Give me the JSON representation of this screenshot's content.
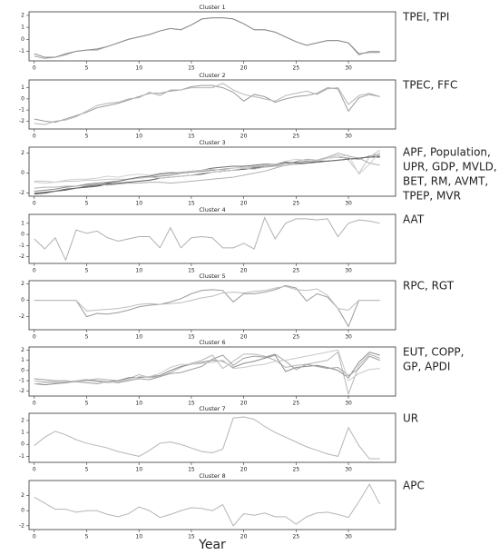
{
  "xlabel": "Year",
  "chart_data": [
    {
      "type": "line",
      "title": "Cluster 1",
      "annotation": [
        "TPEI, TPI"
      ],
      "x": [
        0,
        1,
        2,
        3,
        4,
        5,
        6,
        7,
        8,
        9,
        10,
        11,
        12,
        13,
        14,
        15,
        16,
        17,
        18,
        19,
        20,
        21,
        22,
        23,
        24,
        25,
        26,
        27,
        28,
        29,
        30,
        31,
        32,
        33
      ],
      "xlim": [
        -0.5,
        34.5
      ],
      "xticks": [
        0,
        5,
        10,
        15,
        20,
        25,
        30
      ],
      "ylim": [
        -1.8,
        2.3
      ],
      "yticks": [
        -1,
        0,
        1,
        2
      ],
      "series": [
        {
          "color": "#a6a6a6",
          "values": [
            -1.4,
            -1.6,
            -1.5,
            -1.3,
            -1.0,
            -0.9,
            -0.9,
            -0.6,
            -0.3,
            0.0,
            0.2,
            0.4,
            0.7,
            0.9,
            0.8,
            1.2,
            1.7,
            1.8,
            1.8,
            1.7,
            1.3,
            0.8,
            0.8,
            0.6,
            0.2,
            -0.2,
            -0.5,
            -0.3,
            -0.1,
            -0.1,
            -0.3,
            -1.3,
            -1.0,
            -1.0
          ]
        },
        {
          "color": "#8c8c8c",
          "values": [
            -1.2,
            -1.5,
            -1.5,
            -1.2,
            -1.0,
            -0.9,
            -0.8,
            -0.6,
            -0.3,
            0.0,
            0.2,
            0.4,
            0.7,
            0.9,
            0.8,
            1.2,
            1.7,
            1.8,
            1.8,
            1.7,
            1.3,
            0.8,
            0.8,
            0.6,
            0.2,
            -0.2,
            -0.5,
            -0.3,
            -0.1,
            -0.1,
            -0.3,
            -1.2,
            -1.1,
            -1.1
          ]
        }
      ]
    },
    {
      "type": "line",
      "title": "Cluster 2",
      "annotation": [
        "TPEC, FFC"
      ],
      "x": [
        0,
        1,
        2,
        3,
        4,
        5,
        6,
        7,
        8,
        9,
        10,
        11,
        12,
        13,
        14,
        15,
        16,
        17,
        18,
        19,
        20,
        21,
        22,
        23,
        24,
        25,
        26,
        27,
        28,
        29,
        30,
        31,
        32,
        33
      ],
      "xlim": [
        -0.5,
        34.5
      ],
      "xticks": [
        0,
        5,
        10,
        15,
        20,
        25,
        30
      ],
      "ylim": [
        -2.7,
        1.7
      ],
      "yticks": [
        -2,
        -1,
        0,
        1
      ],
      "series": [
        {
          "color": "#9a9a9a",
          "values": [
            -1.8,
            -2.0,
            -2.1,
            -1.8,
            -1.5,
            -1.2,
            -0.8,
            -0.6,
            -0.4,
            -0.1,
            0.2,
            0.5,
            0.5,
            0.7,
            0.8,
            1.1,
            1.2,
            1.2,
            1.0,
            0.6,
            -0.2,
            0.4,
            0.2,
            -0.3,
            0.0,
            0.2,
            0.3,
            0.5,
            1.0,
            0.9,
            -1.1,
            0.1,
            0.4,
            0.2
          ]
        },
        {
          "color": "#b5b5b5",
          "values": [
            -2.2,
            -2.3,
            -2.0,
            -1.9,
            -1.6,
            -1.1,
            -0.6,
            -0.4,
            -0.3,
            0.0,
            0.1,
            0.6,
            0.3,
            0.8,
            0.8,
            1.0,
            1.0,
            1.0,
            1.4,
            0.8,
            0.4,
            0.2,
            0.0,
            -0.2,
            0.3,
            0.5,
            0.7,
            0.4,
            0.9,
            1.0,
            -0.5,
            0.3,
            0.5,
            0.2
          ]
        }
      ]
    },
    {
      "type": "line",
      "title": "Cluster 3",
      "annotation": [
        "APF, Population,",
        "UPR, GDP, MVLD,",
        "BET, RM, AVMT,",
        "TPEP, MVR"
      ],
      "x": [
        0,
        1,
        2,
        3,
        4,
        5,
        6,
        7,
        8,
        9,
        10,
        11,
        12,
        13,
        14,
        15,
        16,
        17,
        18,
        19,
        20,
        21,
        22,
        23,
        24,
        25,
        26,
        27,
        28,
        29,
        30,
        31,
        32,
        33
      ],
      "xlim": [
        -0.5,
        34.5
      ],
      "xticks": [
        0,
        5,
        10,
        15,
        20,
        25,
        30
      ],
      "ylim": [
        -2.3,
        2.6
      ],
      "yticks": [
        -2,
        0,
        2
      ],
      "series": [
        {
          "color": "#555555",
          "values": [
            -2.0,
            -1.9,
            -1.8,
            -1.6,
            -1.5,
            -1.4,
            -1.3,
            -1.1,
            -1.0,
            -0.9,
            -0.8,
            -0.7,
            -0.5,
            -0.4,
            -0.3,
            -0.2,
            -0.1,
            0.1,
            0.2,
            0.3,
            0.4,
            0.5,
            0.6,
            0.7,
            0.8,
            0.9,
            1.0,
            1.1,
            1.2,
            1.3,
            1.4,
            1.5,
            1.6,
            1.7
          ]
        },
        {
          "color": "#8a8a8a",
          "values": [
            -1.8,
            -1.7,
            -1.6,
            -1.4,
            -1.3,
            -1.1,
            -1.0,
            -0.9,
            -0.8,
            -0.6,
            -0.5,
            -0.4,
            -0.3,
            -0.2,
            0.0,
            0.1,
            0.2,
            0.3,
            0.4,
            0.5,
            0.6,
            0.6,
            0.7,
            0.8,
            1.0,
            1.1,
            1.2,
            1.3,
            1.5,
            1.6,
            1.5,
            1.4,
            1.7,
            1.9
          ]
        },
        {
          "color": "#c4c4c4",
          "values": [
            -0.8,
            -0.8,
            -0.9,
            -0.8,
            -0.8,
            -0.7,
            -0.7,
            -0.6,
            -0.6,
            -0.6,
            -0.5,
            -0.4,
            -0.5,
            -0.4,
            -0.3,
            -0.2,
            0.0,
            0.1,
            0.2,
            0.3,
            0.5,
            0.4,
            0.6,
            0.7,
            0.8,
            0.9,
            1.1,
            1.3,
            1.5,
            1.8,
            1.3,
            0.0,
            1.6,
            2.3
          ]
        },
        {
          "color": "#b0b0b0",
          "values": [
            -1.5,
            -1.4,
            -1.4,
            -1.3,
            -1.3,
            -1.2,
            -1.1,
            -1.2,
            -1.1,
            -1.0,
            -1.0,
            -0.9,
            -0.9,
            -1.0,
            -0.9,
            -0.8,
            -0.7,
            -0.6,
            -0.5,
            -0.4,
            -0.2,
            0.0,
            0.2,
            0.5,
            0.8,
            1.2,
            1.4,
            1.3,
            1.6,
            2.0,
            1.7,
            1.5,
            1.0,
            0.8
          ]
        },
        {
          "color": "#6e6e6e",
          "values": [
            -2.1,
            -2.0,
            -1.8,
            -1.7,
            -1.5,
            -1.3,
            -1.2,
            -1.0,
            -0.8,
            -0.6,
            -0.4,
            -0.3,
            -0.1,
            0.0,
            0.1,
            0.2,
            0.3,
            0.5,
            0.6,
            0.7,
            0.7,
            0.8,
            0.9,
            0.9,
            1.1,
            1.0,
            1.0,
            1.2,
            1.2,
            1.3,
            1.4,
            1.5,
            1.6,
            1.6
          ]
        },
        {
          "color": "#d0d0d0",
          "values": [
            -0.9,
            -1.0,
            -0.9,
            -0.7,
            -0.6,
            -0.6,
            -0.5,
            -0.3,
            -0.4,
            -0.2,
            -0.1,
            -0.2,
            0.0,
            0.1,
            0.1,
            0.2,
            0.3,
            0.4,
            0.3,
            0.5,
            0.6,
            0.7,
            0.8,
            0.9,
            1.2,
            1.4,
            1.3,
            1.2,
            1.5,
            1.6,
            1.8,
            -0.1,
            0.9,
            2.1
          ]
        }
      ]
    },
    {
      "type": "line",
      "title": "Cluster 4",
      "annotation": [
        "AAT"
      ],
      "x": [
        0,
        1,
        2,
        3,
        4,
        5,
        6,
        7,
        8,
        9,
        10,
        11,
        12,
        13,
        14,
        15,
        16,
        17,
        18,
        19,
        20,
        21,
        22,
        23,
        24,
        25,
        26,
        27,
        28,
        29,
        30,
        31,
        32,
        33
      ],
      "xlim": [
        -0.5,
        34.5
      ],
      "xticks": [
        0,
        5,
        10,
        15,
        20,
        25,
        30
      ],
      "ylim": [
        -2.6,
        1.8
      ],
      "yticks": [
        -2,
        -1,
        0,
        1
      ],
      "series": [
        {
          "color": "#b0b0b0",
          "values": [
            -0.4,
            -1.3,
            -0.3,
            -2.3,
            0.4,
            0.1,
            0.3,
            -0.3,
            -0.6,
            -0.4,
            -0.2,
            -0.2,
            -1.2,
            0.6,
            -1.2,
            -0.3,
            -0.2,
            -0.3,
            -1.2,
            -1.2,
            -0.8,
            -1.3,
            1.5,
            -0.4,
            1.0,
            1.4,
            1.4,
            1.3,
            1.4,
            -0.2,
            1.0,
            1.3,
            1.2,
            1.0
          ]
        }
      ]
    },
    {
      "type": "line",
      "title": "Cluster 5",
      "annotation": [
        "RPC, RGT"
      ],
      "x": [
        0,
        1,
        2,
        3,
        4,
        5,
        6,
        7,
        8,
        9,
        10,
        11,
        12,
        13,
        14,
        15,
        16,
        17,
        18,
        19,
        20,
        21,
        22,
        23,
        24,
        25,
        26,
        27,
        28,
        29,
        30,
        31,
        32,
        33
      ],
      "xlim": [
        -0.5,
        34.5
      ],
      "xticks": [
        0,
        5,
        10,
        15,
        20,
        25,
        30
      ],
      "ylim": [
        -3.6,
        2.4
      ],
      "yticks": [
        -2,
        0,
        2
      ],
      "series": [
        {
          "color": "#9a9a9a",
          "values": [
            0,
            0,
            0,
            0,
            0,
            -2.0,
            -1.6,
            -1.7,
            -1.5,
            -1.2,
            -0.8,
            -0.6,
            -0.5,
            -0.2,
            0.2,
            0.8,
            1.2,
            1.3,
            1.2,
            -0.2,
            0.8,
            0.8,
            1.0,
            1.3,
            1.8,
            1.5,
            -0.1,
            0.8,
            0.4,
            -1.0,
            -3.2,
            0.0,
            0.0,
            0.0
          ]
        },
        {
          "color": "#bdbdbd",
          "values": [
            0,
            0,
            0,
            0,
            0,
            -1.3,
            -1.2,
            -1.1,
            -1.0,
            -0.8,
            -0.5,
            -0.4,
            -0.5,
            -0.4,
            -0.3,
            0.0,
            0.3,
            0.5,
            0.9,
            1.0,
            0.9,
            1.1,
            1.2,
            1.5,
            1.7,
            1.3,
            1.2,
            1.4,
            0.6,
            -1.0,
            -1.2,
            0.0,
            0.0,
            0.0
          ]
        }
      ]
    },
    {
      "type": "line",
      "title": "Cluster 6",
      "annotation": [
        "EUT, COPP,",
        "GP, APDI"
      ],
      "x": [
        0,
        1,
        2,
        3,
        4,
        5,
        6,
        7,
        8,
        9,
        10,
        11,
        12,
        13,
        14,
        15,
        16,
        17,
        18,
        19,
        20,
        21,
        22,
        23,
        24,
        25,
        26,
        27,
        28,
        29,
        30,
        31,
        32,
        33
      ],
      "xlim": [
        -0.5,
        34.5
      ],
      "xticks": [
        0,
        5,
        10,
        15,
        20,
        25,
        30
      ],
      "ylim": [
        -2.5,
        2.3
      ],
      "yticks": [
        -2,
        -1,
        0,
        1,
        2
      ],
      "series": [
        {
          "color": "#b5b5b5",
          "values": [
            -1.0,
            -1.1,
            -1.1,
            -1.2,
            -1.1,
            -1.0,
            -0.8,
            -0.9,
            -1.0,
            -0.8,
            -0.4,
            -0.7,
            -0.6,
            -0.2,
            0.3,
            0.7,
            1.0,
            1.5,
            0.2,
            0.9,
            1.6,
            1.6,
            1.4,
            1.0,
            0.3,
            0.5,
            0.6,
            0.8,
            1.0,
            1.8,
            -2.3,
            0.5,
            1.6,
            1.2
          ]
        },
        {
          "color": "#8c8c8c",
          "values": [
            -1.3,
            -1.4,
            -1.3,
            -1.2,
            -1.0,
            -0.9,
            -1.0,
            -1.1,
            -1.0,
            -0.7,
            -0.7,
            -0.6,
            -0.5,
            0.0,
            0.4,
            0.6,
            0.8,
            1.0,
            0.9,
            0.3,
            0.7,
            0.9,
            1.2,
            1.5,
            -0.1,
            0.3,
            0.4,
            0.5,
            0.3,
            0.0,
            -0.7,
            0.8,
            1.8,
            1.5
          ]
        },
        {
          "color": "#a0a0a0",
          "values": [
            -0.8,
            -0.9,
            -1.0,
            -1.0,
            -1.1,
            -1.2,
            -1.3,
            -1.1,
            -1.2,
            -1.0,
            -0.8,
            -0.9,
            -0.6,
            -0.3,
            -0.2,
            0.1,
            0.4,
            1.1,
            1.5,
            0.5,
            1.2,
            1.4,
            1.3,
            1.6,
            0.9,
            0.1,
            0.6,
            0.4,
            0.2,
            0.3,
            -0.5,
            0.2,
            1.4,
            1.0
          ]
        },
        {
          "color": "#c8c8c8",
          "values": [
            -1.3,
            -1.2,
            -1.2,
            -1.1,
            -1.0,
            -1.0,
            -1.1,
            -1.2,
            -1.1,
            -0.9,
            -0.6,
            -0.6,
            -0.3,
            0.3,
            0.6,
            0.6,
            0.7,
            0.8,
            1.0,
            0.2,
            0.3,
            0.5,
            0.6,
            0.9,
            1.0,
            1.2,
            1.4,
            1.6,
            1.8,
            2.0,
            -1.0,
            -0.3,
            0.1,
            0.2
          ]
        }
      ]
    },
    {
      "type": "line",
      "title": "Cluster 7",
      "annotation": [
        "UR"
      ],
      "x": [
        0,
        1,
        2,
        3,
        4,
        5,
        6,
        7,
        8,
        9,
        10,
        11,
        12,
        13,
        14,
        15,
        16,
        17,
        18,
        19,
        20,
        21,
        22,
        23,
        24,
        25,
        26,
        27,
        28,
        29,
        30,
        31,
        32,
        33
      ],
      "xlim": [
        -0.5,
        34.5
      ],
      "xticks": [
        0,
        5,
        10,
        15,
        20,
        25,
        30
      ],
      "ylim": [
        -1.5,
        2.6
      ],
      "yticks": [
        -1,
        0,
        1,
        2
      ],
      "series": [
        {
          "color": "#b5b5b5",
          "values": [
            -0.1,
            0.6,
            1.1,
            0.8,
            0.4,
            0.1,
            -0.1,
            -0.3,
            -0.6,
            -0.8,
            -1.0,
            -0.5,
            0.1,
            0.2,
            0.0,
            -0.3,
            -0.6,
            -0.7,
            -0.4,
            2.2,
            2.3,
            2.1,
            1.5,
            1.0,
            0.6,
            0.2,
            -0.2,
            -0.5,
            -0.8,
            -1.0,
            1.4,
            -0.1,
            -1.2,
            -1.2
          ]
        }
      ]
    },
    {
      "type": "line",
      "title": "Cluster 8",
      "annotation": [
        "APC"
      ],
      "x": [
        0,
        1,
        2,
        3,
        4,
        5,
        6,
        7,
        8,
        9,
        10,
        11,
        12,
        13,
        14,
        15,
        16,
        17,
        18,
        19,
        20,
        21,
        22,
        23,
        24,
        25,
        26,
        27,
        28,
        29,
        30,
        31,
        32,
        33
      ],
      "xlim": [
        -0.5,
        34.5
      ],
      "xticks": [
        0,
        5,
        10,
        15,
        20,
        25,
        30
      ],
      "ylim": [
        -2.5,
        4.0
      ],
      "yticks": [
        -2,
        0,
        2
      ],
      "series": [
        {
          "color": "#b5b5b5",
          "values": [
            1.8,
            1.0,
            0.2,
            0.2,
            -0.2,
            0.0,
            0.0,
            -0.5,
            -0.8,
            -0.4,
            0.5,
            0.0,
            -0.9,
            -0.5,
            0.0,
            0.4,
            0.3,
            0.0,
            0.8,
            -2.0,
            -0.4,
            -0.6,
            -0.3,
            -0.8,
            -0.8,
            -1.8,
            -0.8,
            -0.3,
            -0.2,
            -0.5,
            -0.9,
            1.2,
            3.5,
            0.9
          ]
        }
      ]
    }
  ]
}
